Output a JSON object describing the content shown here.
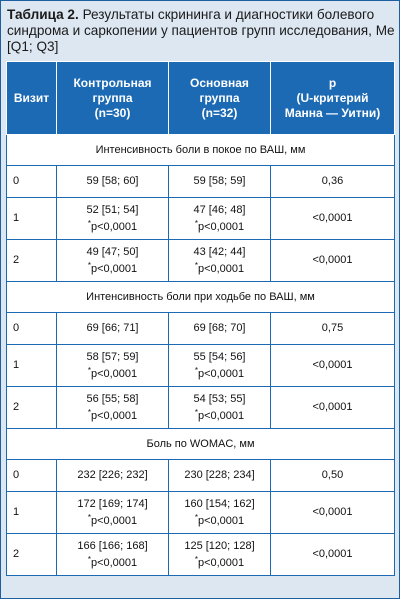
{
  "caption": {
    "label": "Таблица 2.",
    "text": "Результаты скрининга и диагностики болевого синдрома и саркопении у пациентов групп исследования, Me [Q1; Q3]"
  },
  "headers": {
    "visit": "Визит",
    "control": [
      "Контрольная",
      "группа",
      "(n=30)"
    ],
    "main": [
      "Основная",
      "группа",
      "(n=32)"
    ],
    "p": [
      "p",
      "(U-критерий",
      "Манна — Уитни)"
    ]
  },
  "sections": [
    {
      "title": "Интенсивность боли в покое по ВАШ, мм",
      "rows": [
        {
          "visit": "0",
          "control": "59 [58; 60]",
          "control_p": "",
          "main": "59 [58; 59]",
          "main_p": "",
          "p": "0,36"
        },
        {
          "visit": "1",
          "control": "52 [51; 54]",
          "control_p": "p<0,0001",
          "main": "47 [46; 48]",
          "main_p": "p<0,0001",
          "p": "<0,0001"
        },
        {
          "visit": "2",
          "control": "49 [47; 50]",
          "control_p": "p<0,0001",
          "main": "43 [42; 44]",
          "main_p": "p<0,0001",
          "p": "<0,0001"
        }
      ]
    },
    {
      "title": "Интенсивность боли при ходьбе по ВАШ, мм",
      "rows": [
        {
          "visit": "0",
          "control": "69 [66; 71]",
          "control_p": "",
          "main": "69 [68; 70]",
          "main_p": "",
          "p": "0,75"
        },
        {
          "visit": "1",
          "control": "58 [57; 59]",
          "control_p": "p<0,0001",
          "main": "55 [54; 56]",
          "main_p": "p<0,0001",
          "p": "<0,0001"
        },
        {
          "visit": "2",
          "control": "56 [55; 58]",
          "control_p": "p<0,0001",
          "main": "54 [53; 55]",
          "main_p": "p<0,0001",
          "p": "<0,0001"
        }
      ]
    },
    {
      "title": "Боль по WOMAC, мм",
      "rows": [
        {
          "visit": "0",
          "control": "232 [226; 232]",
          "control_p": "",
          "main": "230 [228; 234]",
          "main_p": "",
          "p": "0,50"
        },
        {
          "visit": "1",
          "control": "172 [169; 174]",
          "control_p": "p<0,0001",
          "main": "160 [154; 162]",
          "main_p": "p<0,0001",
          "p": "<0,0001"
        },
        {
          "visit": "2",
          "control": "166 [166; 168]",
          "control_p": "p<0,0001",
          "main": "125 [120; 128]",
          "main_p": "p<0,0001",
          "p": "<0,0001"
        }
      ]
    }
  ],
  "footnote_marker": "*",
  "colors": {
    "header_bg": "#1d6ab4",
    "frame_bg": "#dde7f2",
    "border": "#1d6ab4"
  }
}
